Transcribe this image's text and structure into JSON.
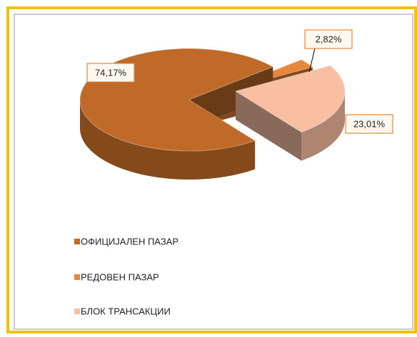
{
  "chart_data": {
    "type": "pie3d",
    "categories": [
      "ОФИЦИЈАЛЕН ПАЗАР",
      "РЕДОВЕН  ПАЗАР",
      "БЛОК ТРАНСАКЦИИ"
    ],
    "values": [
      74.17,
      2.82,
      23.01
    ],
    "value_labels": [
      "74,17%",
      "2,82%",
      "23,01%"
    ],
    "colors": [
      "#bf6a28",
      "#e8873a",
      "#f9bfa2"
    ]
  }
}
